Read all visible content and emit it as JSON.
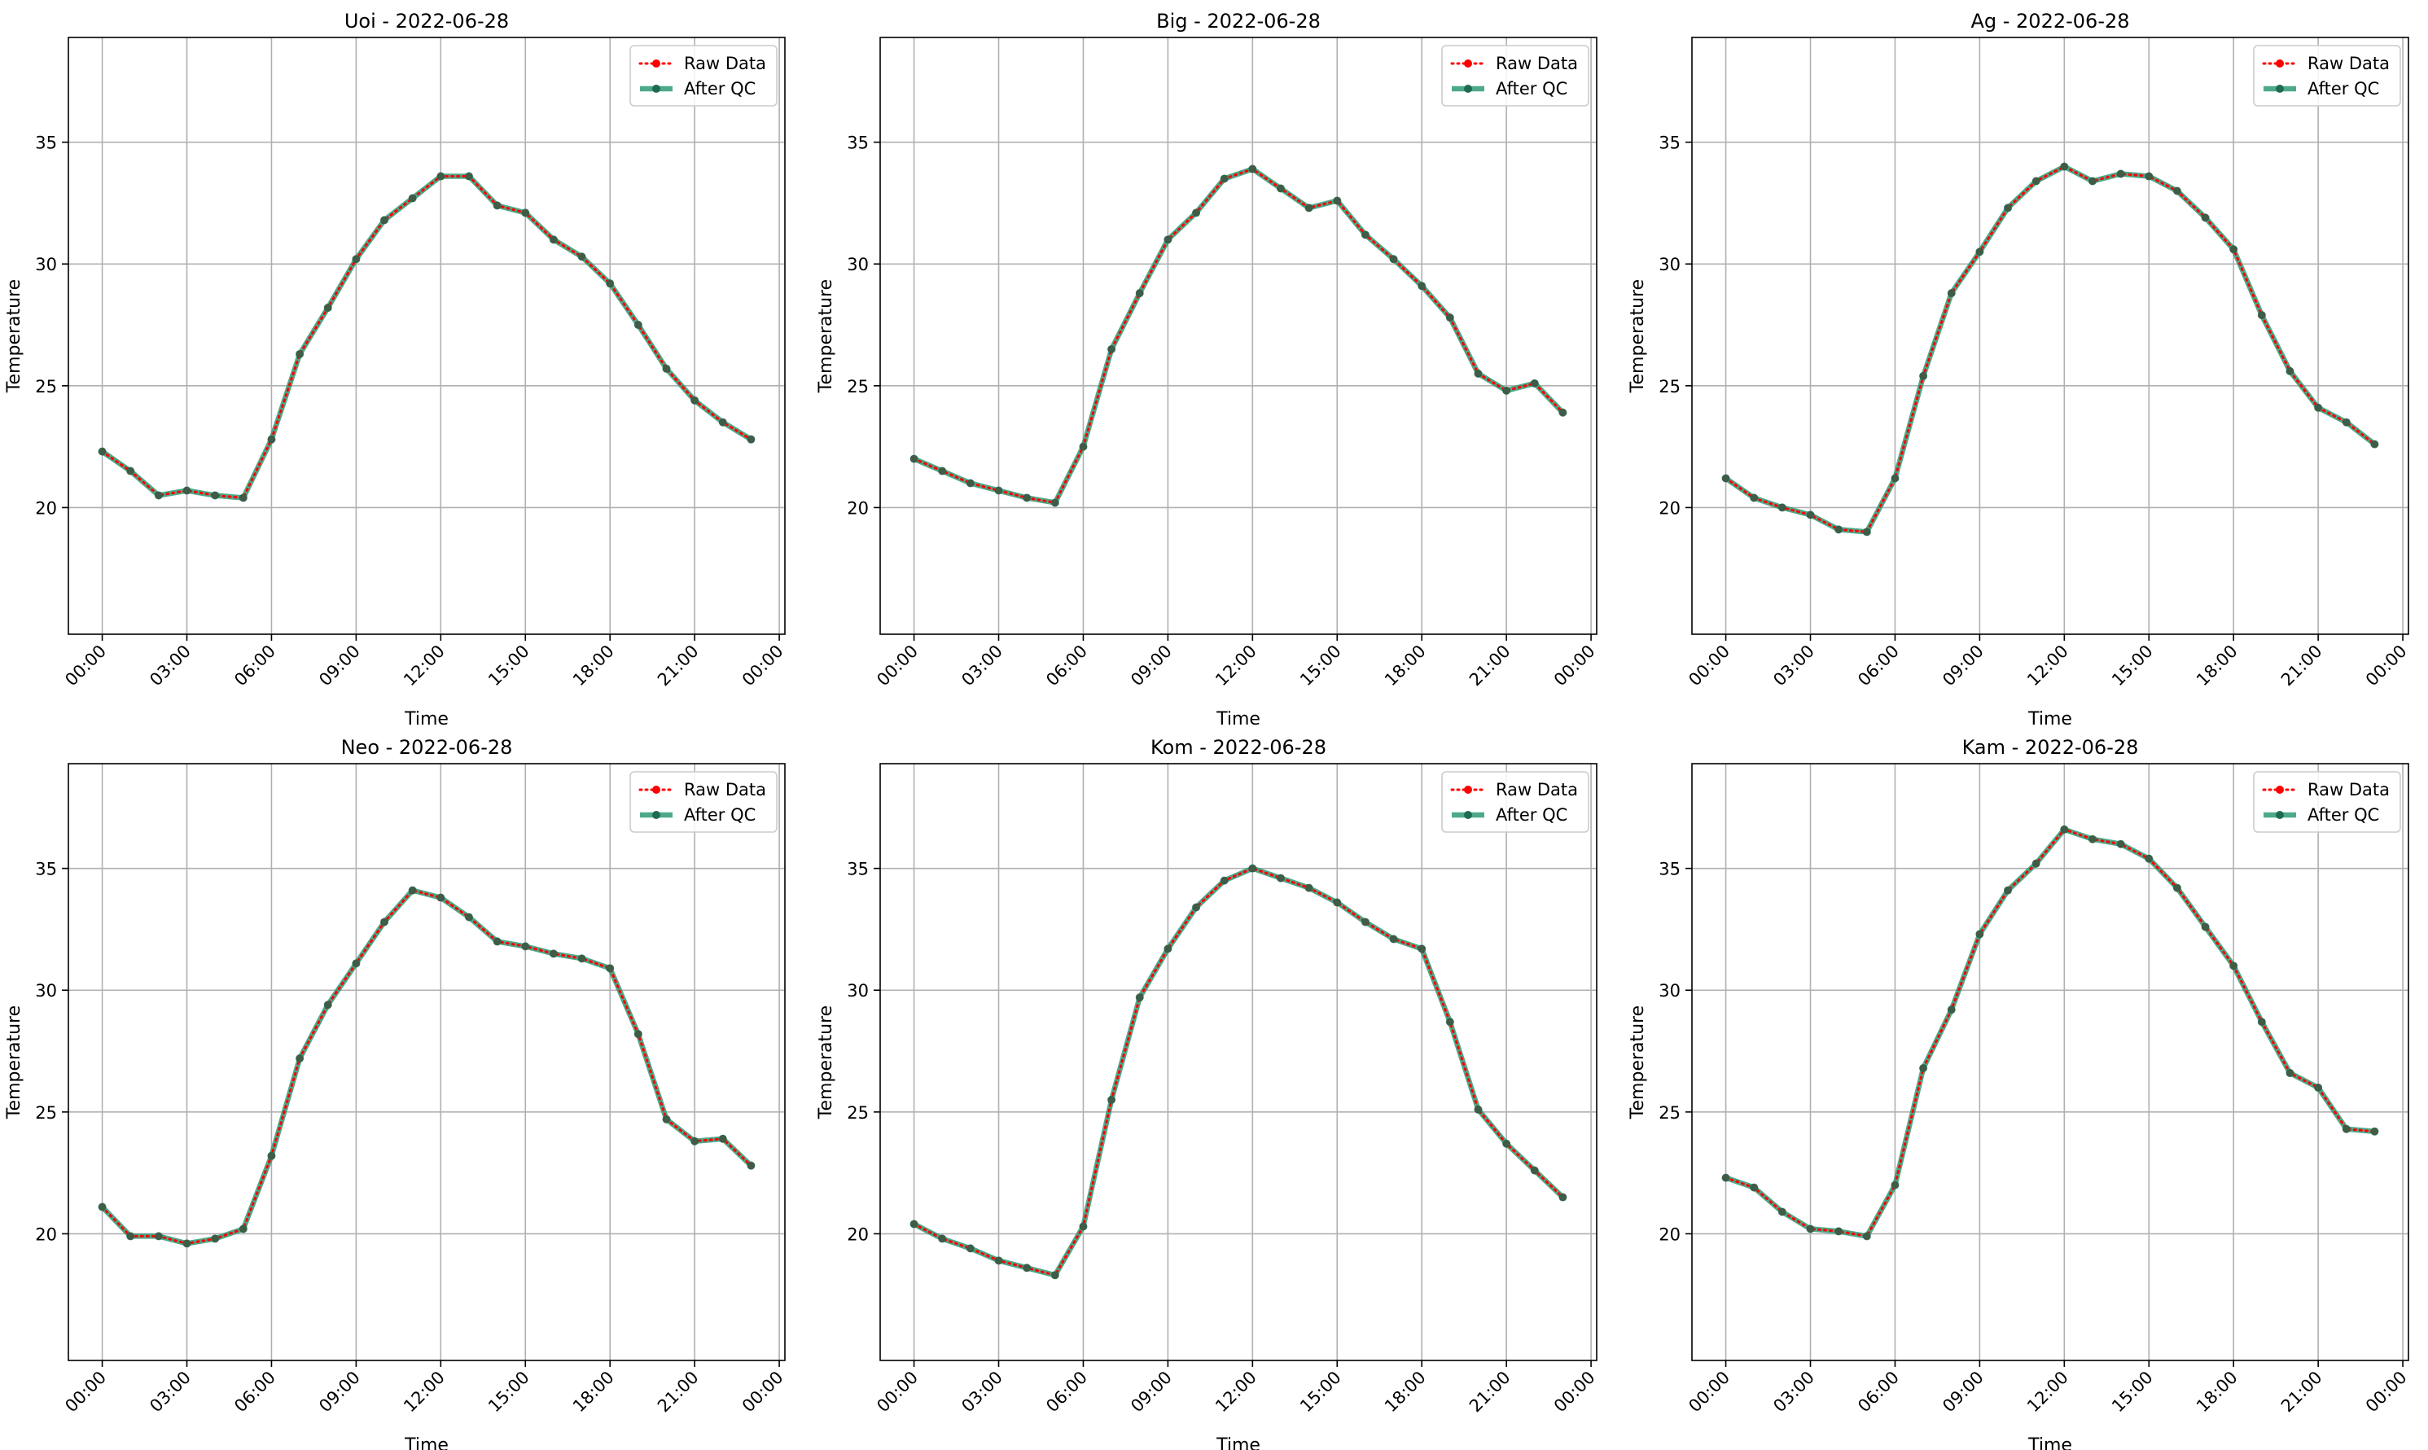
{
  "figure": {
    "legend_placement": "upper right",
    "grid": true
  },
  "chart_data": [
    {
      "type": "line",
      "title": "Uoi - 2022-06-28",
      "xlabel": "Time",
      "ylabel": "Temperature",
      "x_ticks": [
        "00:00",
        "03:00",
        "06:00",
        "09:00",
        "12:00",
        "15:00",
        "18:00",
        "21:00",
        "00:00"
      ],
      "y_ticks": [
        20,
        25,
        30,
        35
      ],
      "xlim_hours": [
        -1.2,
        24.2
      ],
      "ylim": [
        14.8,
        39.3
      ],
      "x_hours": [
        0,
        1,
        2,
        3,
        4,
        5,
        6,
        7,
        8,
        9,
        10,
        11,
        12,
        13,
        14,
        15,
        16,
        17,
        18,
        19,
        20,
        21,
        22,
        23
      ],
      "series": [
        {
          "name": "Raw Data",
          "color": "#ff0000",
          "style": "dotted",
          "values": [
            22.3,
            21.5,
            20.5,
            20.7,
            20.5,
            20.4,
            22.8,
            26.3,
            28.2,
            30.2,
            31.8,
            32.7,
            33.6,
            33.6,
            32.4,
            32.1,
            31.0,
            30.3,
            29.2,
            27.5,
            25.7,
            24.4,
            23.5,
            22.8
          ]
        },
        {
          "name": "After QC",
          "color": "#2e9a76",
          "style": "solid",
          "values": [
            22.3,
            21.5,
            20.5,
            20.7,
            20.5,
            20.4,
            22.8,
            26.3,
            28.2,
            30.2,
            31.8,
            32.7,
            33.6,
            33.6,
            32.4,
            32.1,
            31.0,
            30.3,
            29.2,
            27.5,
            25.7,
            24.4,
            23.5,
            22.8
          ]
        }
      ]
    },
    {
      "type": "line",
      "title": "Big - 2022-06-28",
      "xlabel": "Time",
      "ylabel": "Temperature",
      "x_ticks": [
        "00:00",
        "03:00",
        "06:00",
        "09:00",
        "12:00",
        "15:00",
        "18:00",
        "21:00",
        "00:00"
      ],
      "y_ticks": [
        20,
        25,
        30,
        35
      ],
      "xlim_hours": [
        -1.2,
        24.2
      ],
      "ylim": [
        14.8,
        39.3
      ],
      "x_hours": [
        0,
        1,
        2,
        3,
        4,
        5,
        6,
        7,
        8,
        9,
        10,
        11,
        12,
        13,
        14,
        15,
        16,
        17,
        18,
        19,
        20,
        21,
        22,
        23
      ],
      "series": [
        {
          "name": "Raw Data",
          "color": "#ff0000",
          "style": "dotted",
          "values": [
            22.0,
            21.5,
            21.0,
            20.7,
            20.4,
            20.2,
            22.5,
            26.5,
            28.8,
            31.0,
            32.1,
            33.5,
            33.9,
            33.1,
            32.3,
            32.6,
            31.2,
            30.2,
            29.1,
            27.8,
            25.5,
            24.8,
            25.1,
            23.9
          ]
        },
        {
          "name": "After QC",
          "color": "#2e9a76",
          "style": "solid",
          "values": [
            22.0,
            21.5,
            21.0,
            20.7,
            20.4,
            20.2,
            22.5,
            26.5,
            28.8,
            31.0,
            32.1,
            33.5,
            33.9,
            33.1,
            32.3,
            32.6,
            31.2,
            30.2,
            29.1,
            27.8,
            25.5,
            24.8,
            25.1,
            23.9
          ]
        }
      ]
    },
    {
      "type": "line",
      "title": "Ag - 2022-06-28",
      "xlabel": "Time",
      "ylabel": "Temperature",
      "x_ticks": [
        "00:00",
        "03:00",
        "06:00",
        "09:00",
        "12:00",
        "15:00",
        "18:00",
        "21:00",
        "00:00"
      ],
      "y_ticks": [
        20,
        25,
        30,
        35
      ],
      "xlim_hours": [
        -1.2,
        24.2
      ],
      "ylim": [
        14.8,
        39.3
      ],
      "x_hours": [
        0,
        1,
        2,
        3,
        4,
        5,
        6,
        7,
        8,
        9,
        10,
        11,
        12,
        13,
        14,
        15,
        16,
        17,
        18,
        19,
        20,
        21,
        22,
        23
      ],
      "series": [
        {
          "name": "Raw Data",
          "color": "#ff0000",
          "style": "dotted",
          "values": [
            21.2,
            20.4,
            20.0,
            19.7,
            19.1,
            19.0,
            21.2,
            25.4,
            28.8,
            30.5,
            32.3,
            33.4,
            34.0,
            33.4,
            33.7,
            33.6,
            33.0,
            31.9,
            30.6,
            27.9,
            25.6,
            24.1,
            23.5,
            22.6
          ]
        },
        {
          "name": "After QC",
          "color": "#2e9a76",
          "style": "solid",
          "values": [
            21.2,
            20.4,
            20.0,
            19.7,
            19.1,
            19.0,
            21.2,
            25.4,
            28.8,
            30.5,
            32.3,
            33.4,
            34.0,
            33.4,
            33.7,
            33.6,
            33.0,
            31.9,
            30.6,
            27.9,
            25.6,
            24.1,
            23.5,
            22.6
          ]
        }
      ]
    },
    {
      "type": "line",
      "title": "Neo - 2022-06-28",
      "xlabel": "Time",
      "ylabel": "Temperature",
      "x_ticks": [
        "00:00",
        "03:00",
        "06:00",
        "09:00",
        "12:00",
        "15:00",
        "18:00",
        "21:00",
        "00:00"
      ],
      "y_ticks": [
        20,
        25,
        30,
        35
      ],
      "xlim_hours": [
        -1.2,
        24.2
      ],
      "ylim": [
        14.8,
        39.3
      ],
      "x_hours": [
        0,
        1,
        2,
        3,
        4,
        5,
        6,
        7,
        8,
        9,
        10,
        11,
        12,
        13,
        14,
        15,
        16,
        17,
        18,
        19,
        20,
        21,
        22,
        23
      ],
      "series": [
        {
          "name": "Raw Data",
          "color": "#ff0000",
          "style": "dotted",
          "values": [
            21.1,
            19.9,
            19.9,
            19.6,
            19.8,
            20.2,
            23.2,
            27.2,
            29.4,
            31.1,
            32.8,
            34.1,
            33.8,
            33.0,
            32.0,
            31.8,
            31.5,
            31.3,
            30.9,
            28.2,
            24.7,
            23.8,
            23.9,
            22.8
          ]
        },
        {
          "name": "After QC",
          "color": "#2e9a76",
          "style": "solid",
          "values": [
            21.1,
            19.9,
            19.9,
            19.6,
            19.8,
            20.2,
            23.2,
            27.2,
            29.4,
            31.1,
            32.8,
            34.1,
            33.8,
            33.0,
            32.0,
            31.8,
            31.5,
            31.3,
            30.9,
            28.2,
            24.7,
            23.8,
            23.9,
            22.8
          ]
        }
      ]
    },
    {
      "type": "line",
      "title": "Kom - 2022-06-28",
      "xlabel": "Time",
      "ylabel": "Temperature",
      "x_ticks": [
        "00:00",
        "03:00",
        "06:00",
        "09:00",
        "12:00",
        "15:00",
        "18:00",
        "21:00",
        "00:00"
      ],
      "y_ticks": [
        20,
        25,
        30,
        35
      ],
      "xlim_hours": [
        -1.2,
        24.2
      ],
      "ylim": [
        14.8,
        39.3
      ],
      "x_hours": [
        0,
        1,
        2,
        3,
        4,
        5,
        6,
        7,
        8,
        9,
        10,
        11,
        12,
        13,
        14,
        15,
        16,
        17,
        18,
        19,
        20,
        21,
        22,
        23
      ],
      "series": [
        {
          "name": "Raw Data",
          "color": "#ff0000",
          "style": "dotted",
          "values": [
            20.4,
            19.8,
            19.4,
            18.9,
            18.6,
            18.3,
            20.3,
            25.5,
            29.7,
            31.7,
            33.4,
            34.5,
            35.0,
            34.6,
            34.2,
            33.6,
            32.8,
            32.1,
            31.7,
            28.7,
            25.1,
            23.7,
            22.6,
            21.5
          ]
        },
        {
          "name": "After QC",
          "color": "#2e9a76",
          "style": "solid",
          "values": [
            20.4,
            19.8,
            19.4,
            18.9,
            18.6,
            18.3,
            20.3,
            25.5,
            29.7,
            31.7,
            33.4,
            34.5,
            35.0,
            34.6,
            34.2,
            33.6,
            32.8,
            32.1,
            31.7,
            28.7,
            25.1,
            23.7,
            22.6,
            21.5
          ]
        }
      ]
    },
    {
      "type": "line",
      "title": "Kam - 2022-06-28",
      "xlabel": "Time",
      "ylabel": "Temperature",
      "x_ticks": [
        "00:00",
        "03:00",
        "06:00",
        "09:00",
        "12:00",
        "15:00",
        "18:00",
        "21:00",
        "00:00"
      ],
      "y_ticks": [
        20,
        25,
        30,
        35
      ],
      "xlim_hours": [
        -1.2,
        24.2
      ],
      "ylim": [
        14.8,
        39.3
      ],
      "x_hours": [
        0,
        1,
        2,
        3,
        4,
        5,
        6,
        7,
        8,
        9,
        10,
        11,
        12,
        13,
        14,
        15,
        16,
        17,
        18,
        19,
        20,
        21,
        22,
        23
      ],
      "series": [
        {
          "name": "Raw Data",
          "color": "#ff0000",
          "style": "dotted",
          "values": [
            22.3,
            21.9,
            20.9,
            20.2,
            20.1,
            19.9,
            22.0,
            26.8,
            29.2,
            32.3,
            34.1,
            35.2,
            36.6,
            36.2,
            36.0,
            35.4,
            34.2,
            32.6,
            31.0,
            28.7,
            26.6,
            26.0,
            24.3,
            24.2
          ]
        },
        {
          "name": "After QC",
          "color": "#2e9a76",
          "style": "solid",
          "values": [
            22.3,
            21.9,
            20.9,
            20.2,
            20.1,
            19.9,
            22.0,
            26.8,
            29.2,
            32.3,
            34.1,
            35.2,
            36.6,
            36.2,
            36.0,
            35.4,
            34.2,
            32.6,
            31.0,
            28.7,
            26.6,
            26.0,
            24.3,
            24.2
          ]
        }
      ]
    }
  ]
}
